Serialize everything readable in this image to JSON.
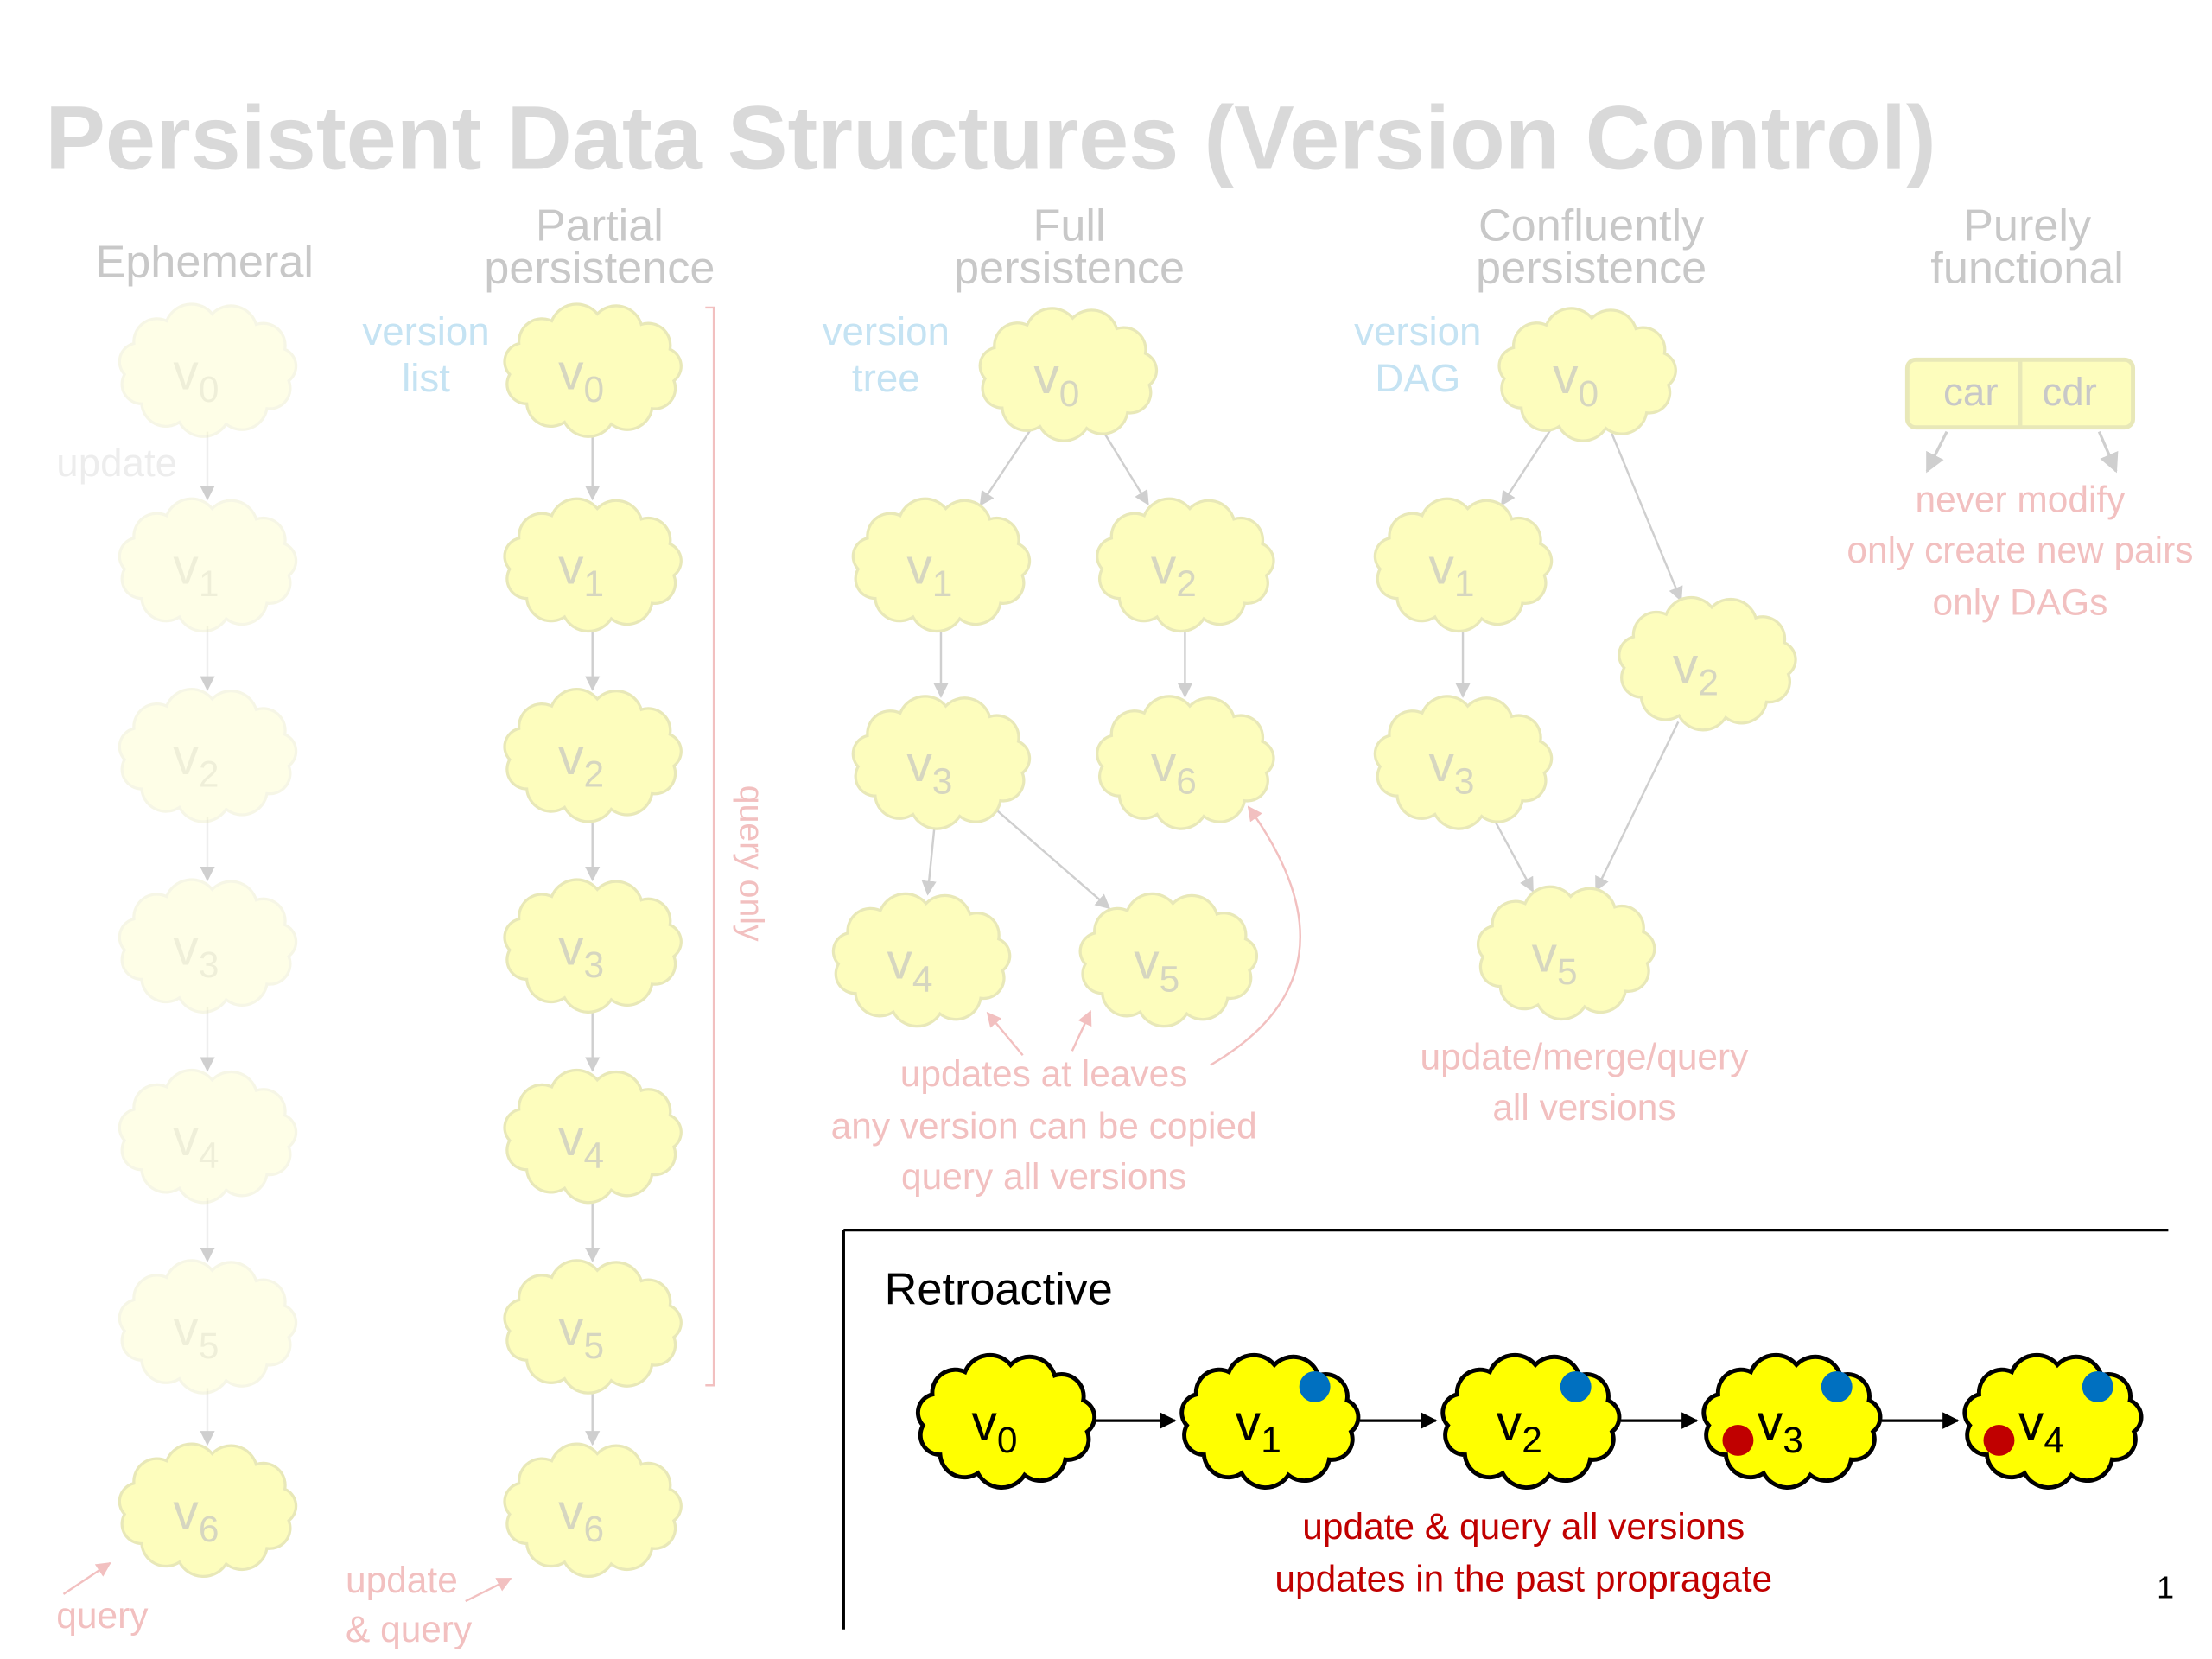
{
  "title": "Persistent Data Structures (Version Control)",
  "panels": [
    {
      "heading": [
        "Ephemeral"
      ],
      "side": [
        "update"
      ],
      "nodes": [
        {
          "name": "v",
          "sub": "0"
        },
        {
          "name": "v",
          "sub": "1"
        },
        {
          "name": "v",
          "sub": "2"
        },
        {
          "name": "v",
          "sub": "3"
        },
        {
          "name": "v",
          "sub": "4"
        },
        {
          "name": "v",
          "sub": "5"
        },
        {
          "name": "v",
          "sub": "6"
        }
      ],
      "notes": [
        "query"
      ]
    },
    {
      "heading": [
        "Partial",
        "persistence"
      ],
      "side": [
        "version",
        "list"
      ],
      "bracket_label": "query only",
      "nodes": [
        {
          "name": "v",
          "sub": "0"
        },
        {
          "name": "v",
          "sub": "1"
        },
        {
          "name": "v",
          "sub": "2"
        },
        {
          "name": "v",
          "sub": "3"
        },
        {
          "name": "v",
          "sub": "4"
        },
        {
          "name": "v",
          "sub": "5"
        },
        {
          "name": "v",
          "sub": "6"
        }
      ],
      "notes": [
        "update",
        "& query"
      ]
    },
    {
      "heading": [
        "Full",
        "persistence"
      ],
      "side": [
        "version",
        "tree"
      ],
      "nodes": [
        {
          "name": "v",
          "sub": "0"
        },
        {
          "name": "v",
          "sub": "1"
        },
        {
          "name": "v",
          "sub": "2"
        },
        {
          "name": "v",
          "sub": "3"
        },
        {
          "name": "v",
          "sub": "6"
        },
        {
          "name": "v",
          "sub": "4"
        },
        {
          "name": "v",
          "sub": "5"
        }
      ],
      "notes": [
        "updates at leaves",
        "any version can be copied",
        "query all versions"
      ]
    },
    {
      "heading": [
        "Confluently",
        "persistence"
      ],
      "side": [
        "version",
        "DAG"
      ],
      "nodes": [
        {
          "name": "v",
          "sub": "0"
        },
        {
          "name": "v",
          "sub": "1"
        },
        {
          "name": "v",
          "sub": "2"
        },
        {
          "name": "v",
          "sub": "3"
        },
        {
          "name": "v",
          "sub": "5"
        }
      ],
      "notes": [
        "update/merge/query",
        "all versions"
      ]
    },
    {
      "heading": [
        "Purely",
        "functional"
      ],
      "cells": [
        "car",
        "cdr"
      ],
      "notes": [
        "never modify",
        "only create new pairs",
        "only DAGs"
      ]
    }
  ],
  "retroactive": {
    "title": "Retroactive",
    "nodes": [
      {
        "name": "v",
        "sub": "0"
      },
      {
        "name": "v",
        "sub": "1"
      },
      {
        "name": "v",
        "sub": "2"
      },
      {
        "name": "v",
        "sub": "3"
      },
      {
        "name": "v",
        "sub": "4"
      }
    ],
    "notes": [
      "update & query all versions",
      "updates in the past propragate"
    ]
  },
  "page_number": "1"
}
